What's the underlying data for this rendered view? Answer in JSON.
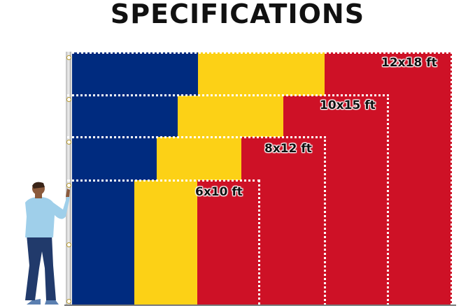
{
  "title": "SPECIFICATIONS",
  "colors": {
    "blue": "#002b7f",
    "yellow": "#fcd116",
    "red": "#ce1126"
  },
  "sizes": [
    {
      "label": "12x18 ft"
    },
    {
      "label": "10x15 ft"
    },
    {
      "label": "8x12 ft"
    },
    {
      "label": "6x10 ft"
    }
  ]
}
